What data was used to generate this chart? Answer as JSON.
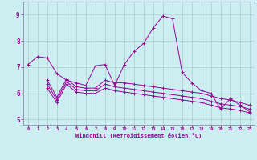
{
  "xlabel": "Windchill (Refroidissement éolien,°C)",
  "bg_color": "#cceef0",
  "line_color": "#990099",
  "grid_color": "#aacccc",
  "spine_color": "#8888aa",
  "xlim": [
    -0.5,
    23.5
  ],
  "ylim": [
    4.8,
    9.5
  ],
  "xticks": [
    0,
    1,
    2,
    3,
    4,
    5,
    6,
    7,
    8,
    9,
    10,
    11,
    12,
    13,
    14,
    15,
    16,
    17,
    18,
    19,
    20,
    21,
    22,
    23
  ],
  "yticks": [
    5,
    6,
    7,
    8,
    9
  ],
  "series1": [
    7.1,
    7.4,
    7.35,
    6.75,
    6.5,
    6.4,
    6.3,
    7.05,
    7.1,
    6.3,
    7.1,
    7.6,
    7.9,
    8.5,
    8.95,
    8.85,
    6.8,
    6.4,
    6.1,
    6.0,
    5.4,
    5.8,
    5.55,
    5.3
  ],
  "series2_x": [
    2,
    3,
    4,
    5,
    6,
    7,
    8,
    9,
    10,
    11,
    12,
    13,
    14,
    15,
    16,
    17,
    18,
    19,
    20,
    21,
    22,
    23
  ],
  "series2_y": [
    6.5,
    5.85,
    6.55,
    6.25,
    6.2,
    6.2,
    6.5,
    6.4,
    6.4,
    6.35,
    6.3,
    6.25,
    6.2,
    6.15,
    6.1,
    6.05,
    6.0,
    5.9,
    5.8,
    5.75,
    5.65,
    5.55
  ],
  "series3_x": [
    2,
    3,
    4,
    5,
    6,
    7,
    8,
    9,
    10,
    11,
    12,
    13,
    14,
    15,
    16,
    17,
    18,
    19,
    20,
    21,
    22,
    23
  ],
  "series3_y": [
    6.35,
    5.75,
    6.45,
    6.15,
    6.1,
    6.1,
    6.35,
    6.25,
    6.2,
    6.15,
    6.1,
    6.05,
    6.0,
    5.95,
    5.9,
    5.85,
    5.8,
    5.7,
    5.6,
    5.55,
    5.5,
    5.4
  ],
  "series4_x": [
    2,
    3,
    4,
    5,
    6,
    7,
    8,
    9,
    10,
    11,
    12,
    13,
    14,
    15,
    16,
    17,
    18,
    19,
    20,
    21,
    22,
    23
  ],
  "series4_y": [
    6.2,
    5.65,
    6.35,
    6.05,
    6.0,
    6.0,
    6.2,
    6.1,
    6.05,
    6.0,
    5.95,
    5.9,
    5.85,
    5.8,
    5.75,
    5.7,
    5.65,
    5.55,
    5.45,
    5.4,
    5.35,
    5.25
  ]
}
